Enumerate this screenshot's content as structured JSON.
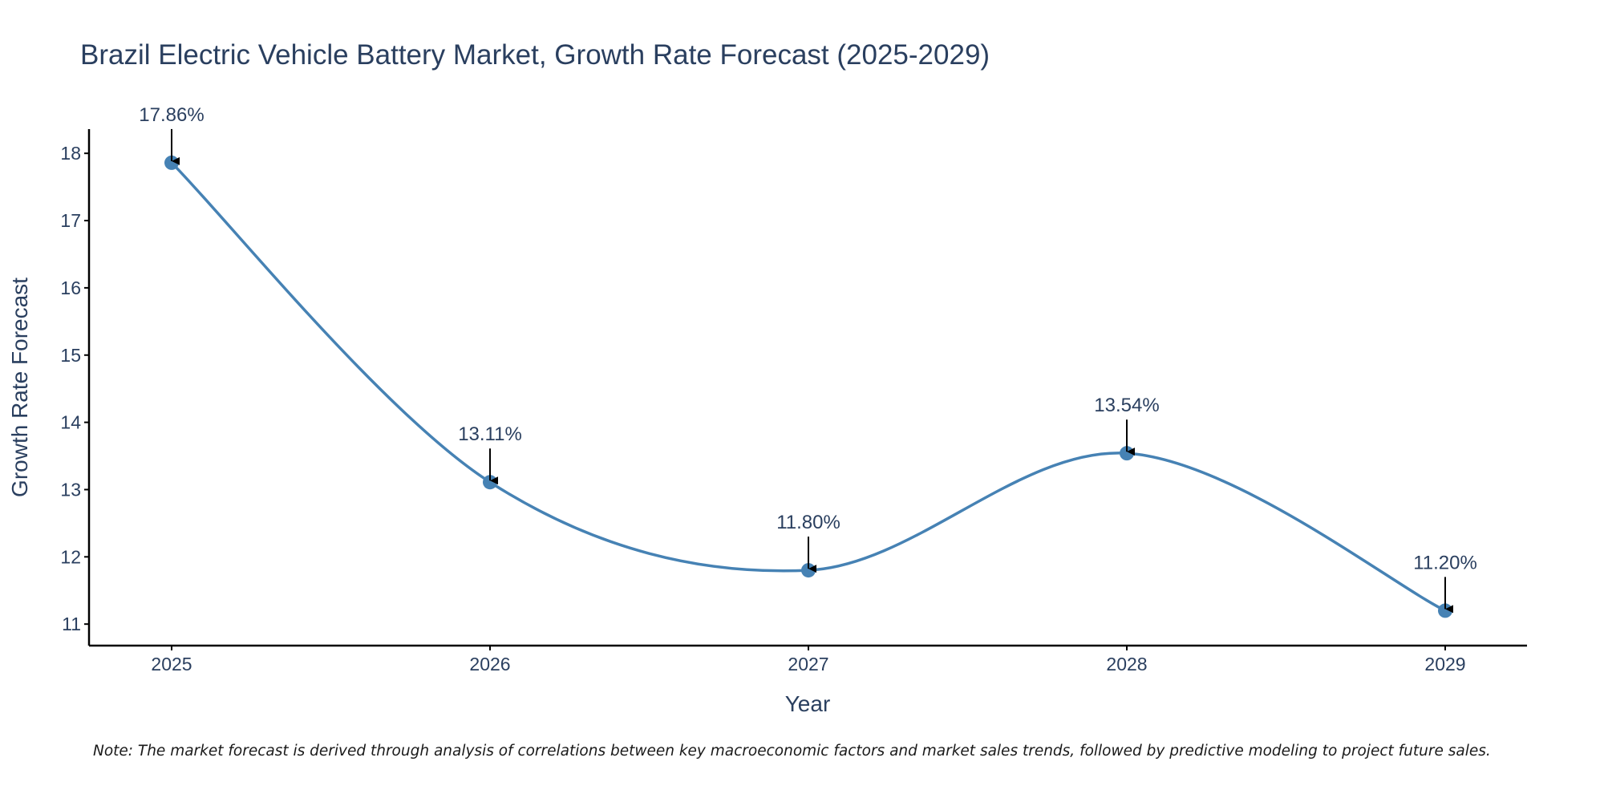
{
  "chart_data": {
    "type": "line",
    "title": "Brazil Electric Vehicle Battery Market, Growth Rate Forecast (2025-2029)",
    "xlabel": "Year",
    "ylabel": "Growth Rate Forecast",
    "categories": [
      "2025",
      "2026",
      "2027",
      "2028",
      "2029"
    ],
    "values": [
      17.86,
      13.11,
      11.8,
      13.54,
      11.2
    ],
    "data_labels": [
      "17.86%",
      "13.11%",
      "11.80%",
      "13.54%",
      "11.20%"
    ],
    "yticks": [
      11,
      12,
      13,
      14,
      15,
      16,
      17,
      18
    ],
    "ylim": [
      10.68,
      18.36
    ],
    "grid": false,
    "line_shape": "spline",
    "line_color": "#4682b4",
    "marker_color": "#4682b4",
    "annotation_arrows": true,
    "note": "Note: The market forecast is derived through analysis of correlations between key macroeconomic factors and market sales trends, followed by predictive modeling to project future sales."
  }
}
